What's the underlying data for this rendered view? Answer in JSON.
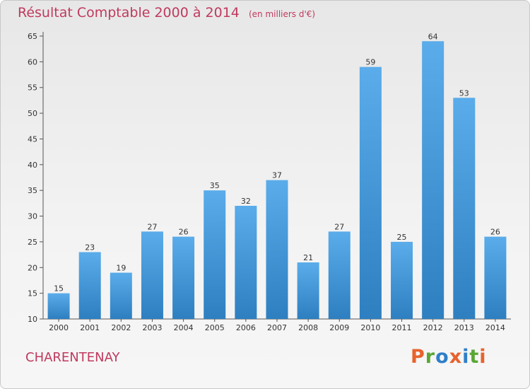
{
  "header": {
    "title": "Résultat Comptable 2000 à 2014",
    "unit": "(en milliers d'€)"
  },
  "footer": {
    "commune": "CHARENTENAY",
    "logo_text": "Proxiti"
  },
  "colors": {
    "title": "#c03a5e",
    "bar_light": "#5aacea",
    "bar_dark": "#2e7fc0",
    "logo_letters": [
      "#e8622c",
      "#5aa636",
      "#2f7fc8",
      "#e8622c",
      "#2f7fc8",
      "#5aa636",
      "#e8622c"
    ]
  },
  "chart_data": {
    "type": "bar",
    "categories": [
      "2000",
      "2001",
      "2002",
      "2003",
      "2004",
      "2005",
      "2006",
      "2007",
      "2008",
      "2009",
      "2010",
      "2011",
      "2012",
      "2013",
      "2014"
    ],
    "values": [
      15,
      23,
      19,
      27,
      26,
      35,
      32,
      37,
      21,
      27,
      59,
      25,
      64,
      53,
      26
    ],
    "ylim": [
      10,
      65
    ],
    "yticks": [
      10,
      15,
      20,
      25,
      30,
      35,
      40,
      45,
      50,
      55,
      60,
      65
    ],
    "grid": false,
    "legend": "none"
  }
}
